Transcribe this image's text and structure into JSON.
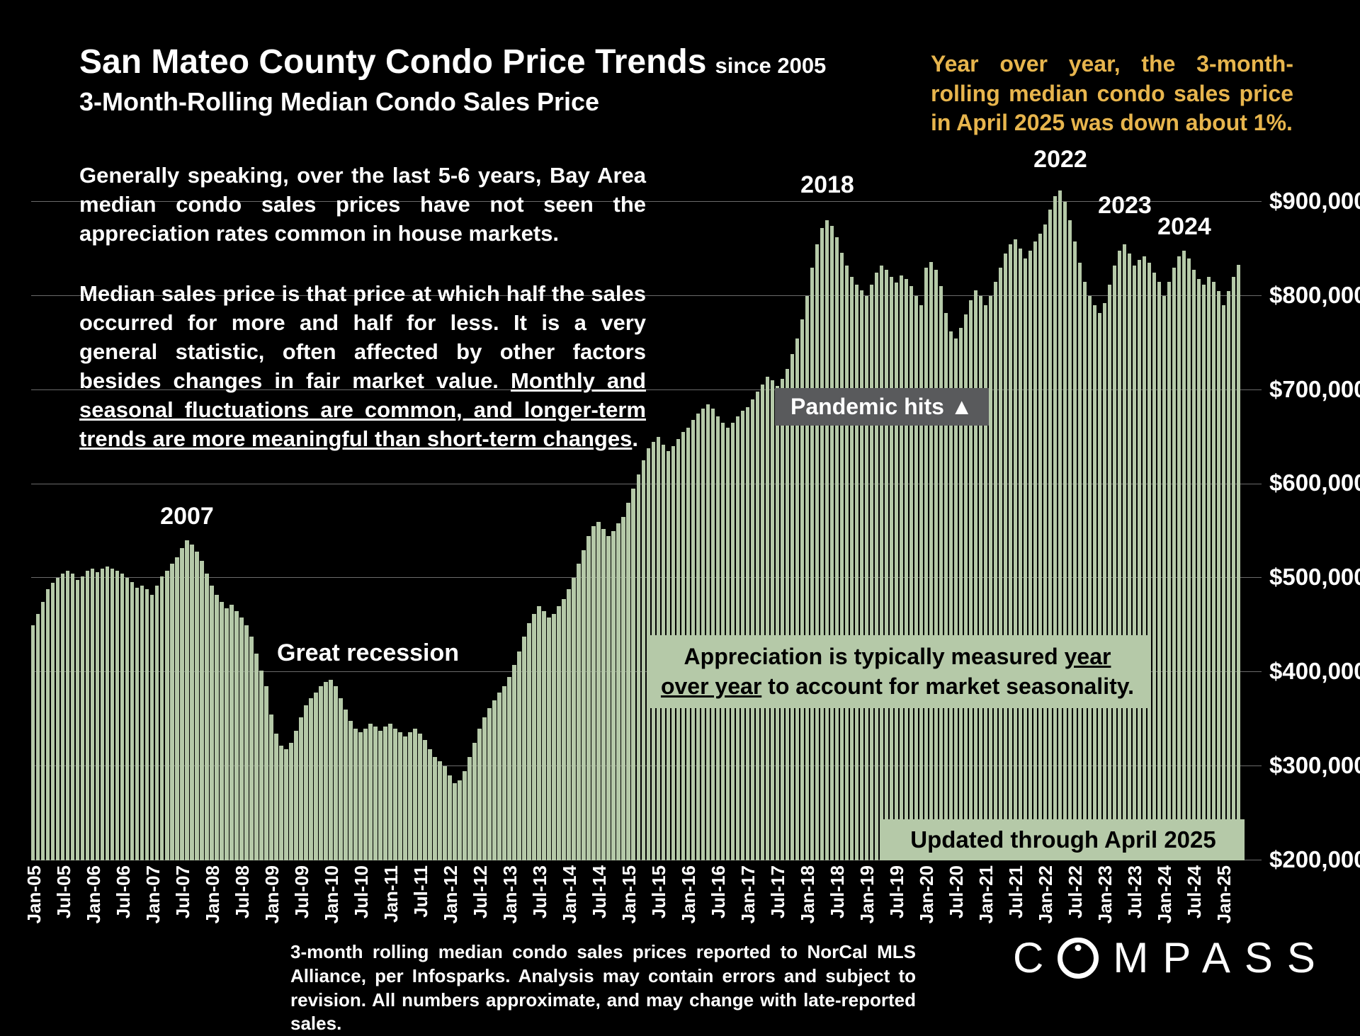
{
  "header": {
    "title_main": "San Mateo County Condo Price Trends",
    "title_suffix": "since 2005",
    "subtitle": "3-Month-Rolling Median Condo Sales Price"
  },
  "highlight_note": "Year over year, the 3-month-rolling median condo sales price in April 2025 was down about 1%.",
  "paragraph1": "Generally speaking, over the last 5-6 years, Bay Area median condo sales prices have not seen the appreciation rates common in house markets.",
  "paragraph2": {
    "normal": "Median sales price is that price at which half the sales occurred for more and half for less. It is a very general statistic, often affected by other factors besides changes in fair market value. ",
    "underlined": "Monthly and seasonal fluctuations are common, and longer-term trends are more meaningful than short-term changes",
    "tail": "."
  },
  "callouts": {
    "appreciation_pre": "Appreciation is typically measured ",
    "appreciation_underlined": "year over year",
    "appreciation_post": " to account for market seasonality.",
    "updated": "Updated through April 2025"
  },
  "footer": {
    "source_note": "3-month rolling median condo sales prices reported to NorCal MLS Alliance, per Infosparks. Analysis may contain errors and subject to revision. All numbers approximate, and may change with late-reported sales.",
    "logo_c": "C",
    "logo_rest": "MPASS"
  },
  "colors": {
    "background": "#000000",
    "bar": "#b5c9a8",
    "accent_gold": "#e7b54d",
    "callout_green": "#b5c9a8",
    "callout_gray": "#595a5c",
    "gridline": "#8f8f8f",
    "text": "#ffffff"
  },
  "chart_data": {
    "type": "bar",
    "title": "San Mateo County Condo Price Trends since 2005",
    "subtitle": "3-Month-Rolling Median Condo Sales Price",
    "units": "USD",
    "x_frequency": "monthly",
    "x_start": "Jan-2005",
    "x_end": "Apr-2025",
    "x_tick_every": 6,
    "x_tick_labels": [
      "Jan-05",
      "Jul-05",
      "Jan-06",
      "Jul-06",
      "Jan-07",
      "Jul-07",
      "Jan-08",
      "Jul-08",
      "Jan-09",
      "Jul-09",
      "Jan-10",
      "Jul-10",
      "Jan-11",
      "Jul-11",
      "Jan-12",
      "Jul-12",
      "Jan-13",
      "Jul-13",
      "Jan-14",
      "Jul-14",
      "Jan-15",
      "Jul-15",
      "Jan-16",
      "Jul-16",
      "Jan-17",
      "Jul-17",
      "Jan-18",
      "Jul-18",
      "Jan-19",
      "Jul-19",
      "Jan-20",
      "Jul-20",
      "Jan-21",
      "Jul-21",
      "Jan-22",
      "Jul-22",
      "Jan-23",
      "Jul-23",
      "Jan-24",
      "Jul-24",
      "Jan-25"
    ],
    "y_axis": {
      "min": 200000,
      "render_max": 930000,
      "tick_interval": 100000,
      "ticks": [
        900000,
        800000,
        700000,
        600000,
        500000,
        400000,
        300000,
        200000
      ],
      "tick_labels": [
        "$900,000",
        "$800,000",
        "$700,000",
        "$600,000",
        "$500,000",
        "$400,000",
        "$300,000",
        "$200,000"
      ]
    },
    "series_name": "3-Month-Rolling Median Condo Sales Price",
    "bar_color": "#b5c9a8",
    "background": "#000000",
    "values": [
      450000,
      462000,
      475000,
      488000,
      495000,
      500000,
      505000,
      508000,
      505000,
      498000,
      502000,
      508000,
      510000,
      506000,
      510000,
      512000,
      510000,
      508000,
      505000,
      500000,
      496000,
      490000,
      492000,
      488000,
      482000,
      492000,
      502000,
      508000,
      515000,
      522000,
      532000,
      540000,
      536000,
      528000,
      518000,
      505000,
      492000,
      482000,
      475000,
      468000,
      472000,
      465000,
      458000,
      450000,
      438000,
      420000,
      402000,
      385000,
      355000,
      335000,
      322000,
      318000,
      325000,
      338000,
      352000,
      365000,
      372000,
      378000,
      385000,
      390000,
      392000,
      385000,
      372000,
      360000,
      348000,
      340000,
      336000,
      340000,
      345000,
      342000,
      338000,
      342000,
      345000,
      340000,
      336000,
      332000,
      336000,
      340000,
      335000,
      328000,
      318000,
      310000,
      305000,
      300000,
      290000,
      282000,
      285000,
      295000,
      310000,
      325000,
      340000,
      352000,
      362000,
      370000,
      378000,
      385000,
      395000,
      408000,
      422000,
      438000,
      452000,
      462000,
      470000,
      465000,
      458000,
      462000,
      470000,
      478000,
      488000,
      500000,
      515000,
      530000,
      545000,
      555000,
      560000,
      552000,
      545000,
      550000,
      558000,
      565000,
      580000,
      595000,
      610000,
      625000,
      638000,
      645000,
      650000,
      642000,
      635000,
      640000,
      648000,
      655000,
      660000,
      668000,
      675000,
      680000,
      685000,
      680000,
      672000,
      665000,
      660000,
      665000,
      672000,
      678000,
      682000,
      690000,
      698000,
      706000,
      714000,
      710000,
      704000,
      712000,
      722000,
      738000,
      755000,
      775000,
      800000,
      830000,
      855000,
      872000,
      880000,
      874000,
      862000,
      846000,
      832000,
      820000,
      812000,
      806000,
      800000,
      812000,
      825000,
      832000,
      828000,
      820000,
      814000,
      822000,
      818000,
      810000,
      800000,
      790000,
      830000,
      836000,
      828000,
      810000,
      782000,
      762000,
      755000,
      766000,
      780000,
      795000,
      806000,
      800000,
      790000,
      800000,
      815000,
      830000,
      845000,
      855000,
      860000,
      850000,
      840000,
      848000,
      858000,
      866000,
      876000,
      892000,
      906000,
      912000,
      900000,
      880000,
      858000,
      835000,
      815000,
      800000,
      790000,
      782000,
      792000,
      812000,
      832000,
      848000,
      855000,
      845000,
      832000,
      838000,
      842000,
      835000,
      825000,
      815000,
      800000,
      815000,
      830000,
      842000,
      848000,
      840000,
      828000,
      818000,
      812000,
      820000,
      815000,
      805000,
      790000,
      805000,
      820000,
      833000
    ],
    "annotations": [
      {
        "text": "2007",
        "x": "Aug-2007"
      },
      {
        "text": "Great recession",
        "x": "2009-2011"
      },
      {
        "text": "2018",
        "x": "May-2018"
      },
      {
        "text": "Pandemic hits ▲",
        "x": "Mar-2020"
      },
      {
        "text": "2022",
        "x": "Apr-2022"
      },
      {
        "text": "2023",
        "x": "May-2023"
      },
      {
        "text": "2024",
        "x": "May-2024"
      }
    ]
  }
}
